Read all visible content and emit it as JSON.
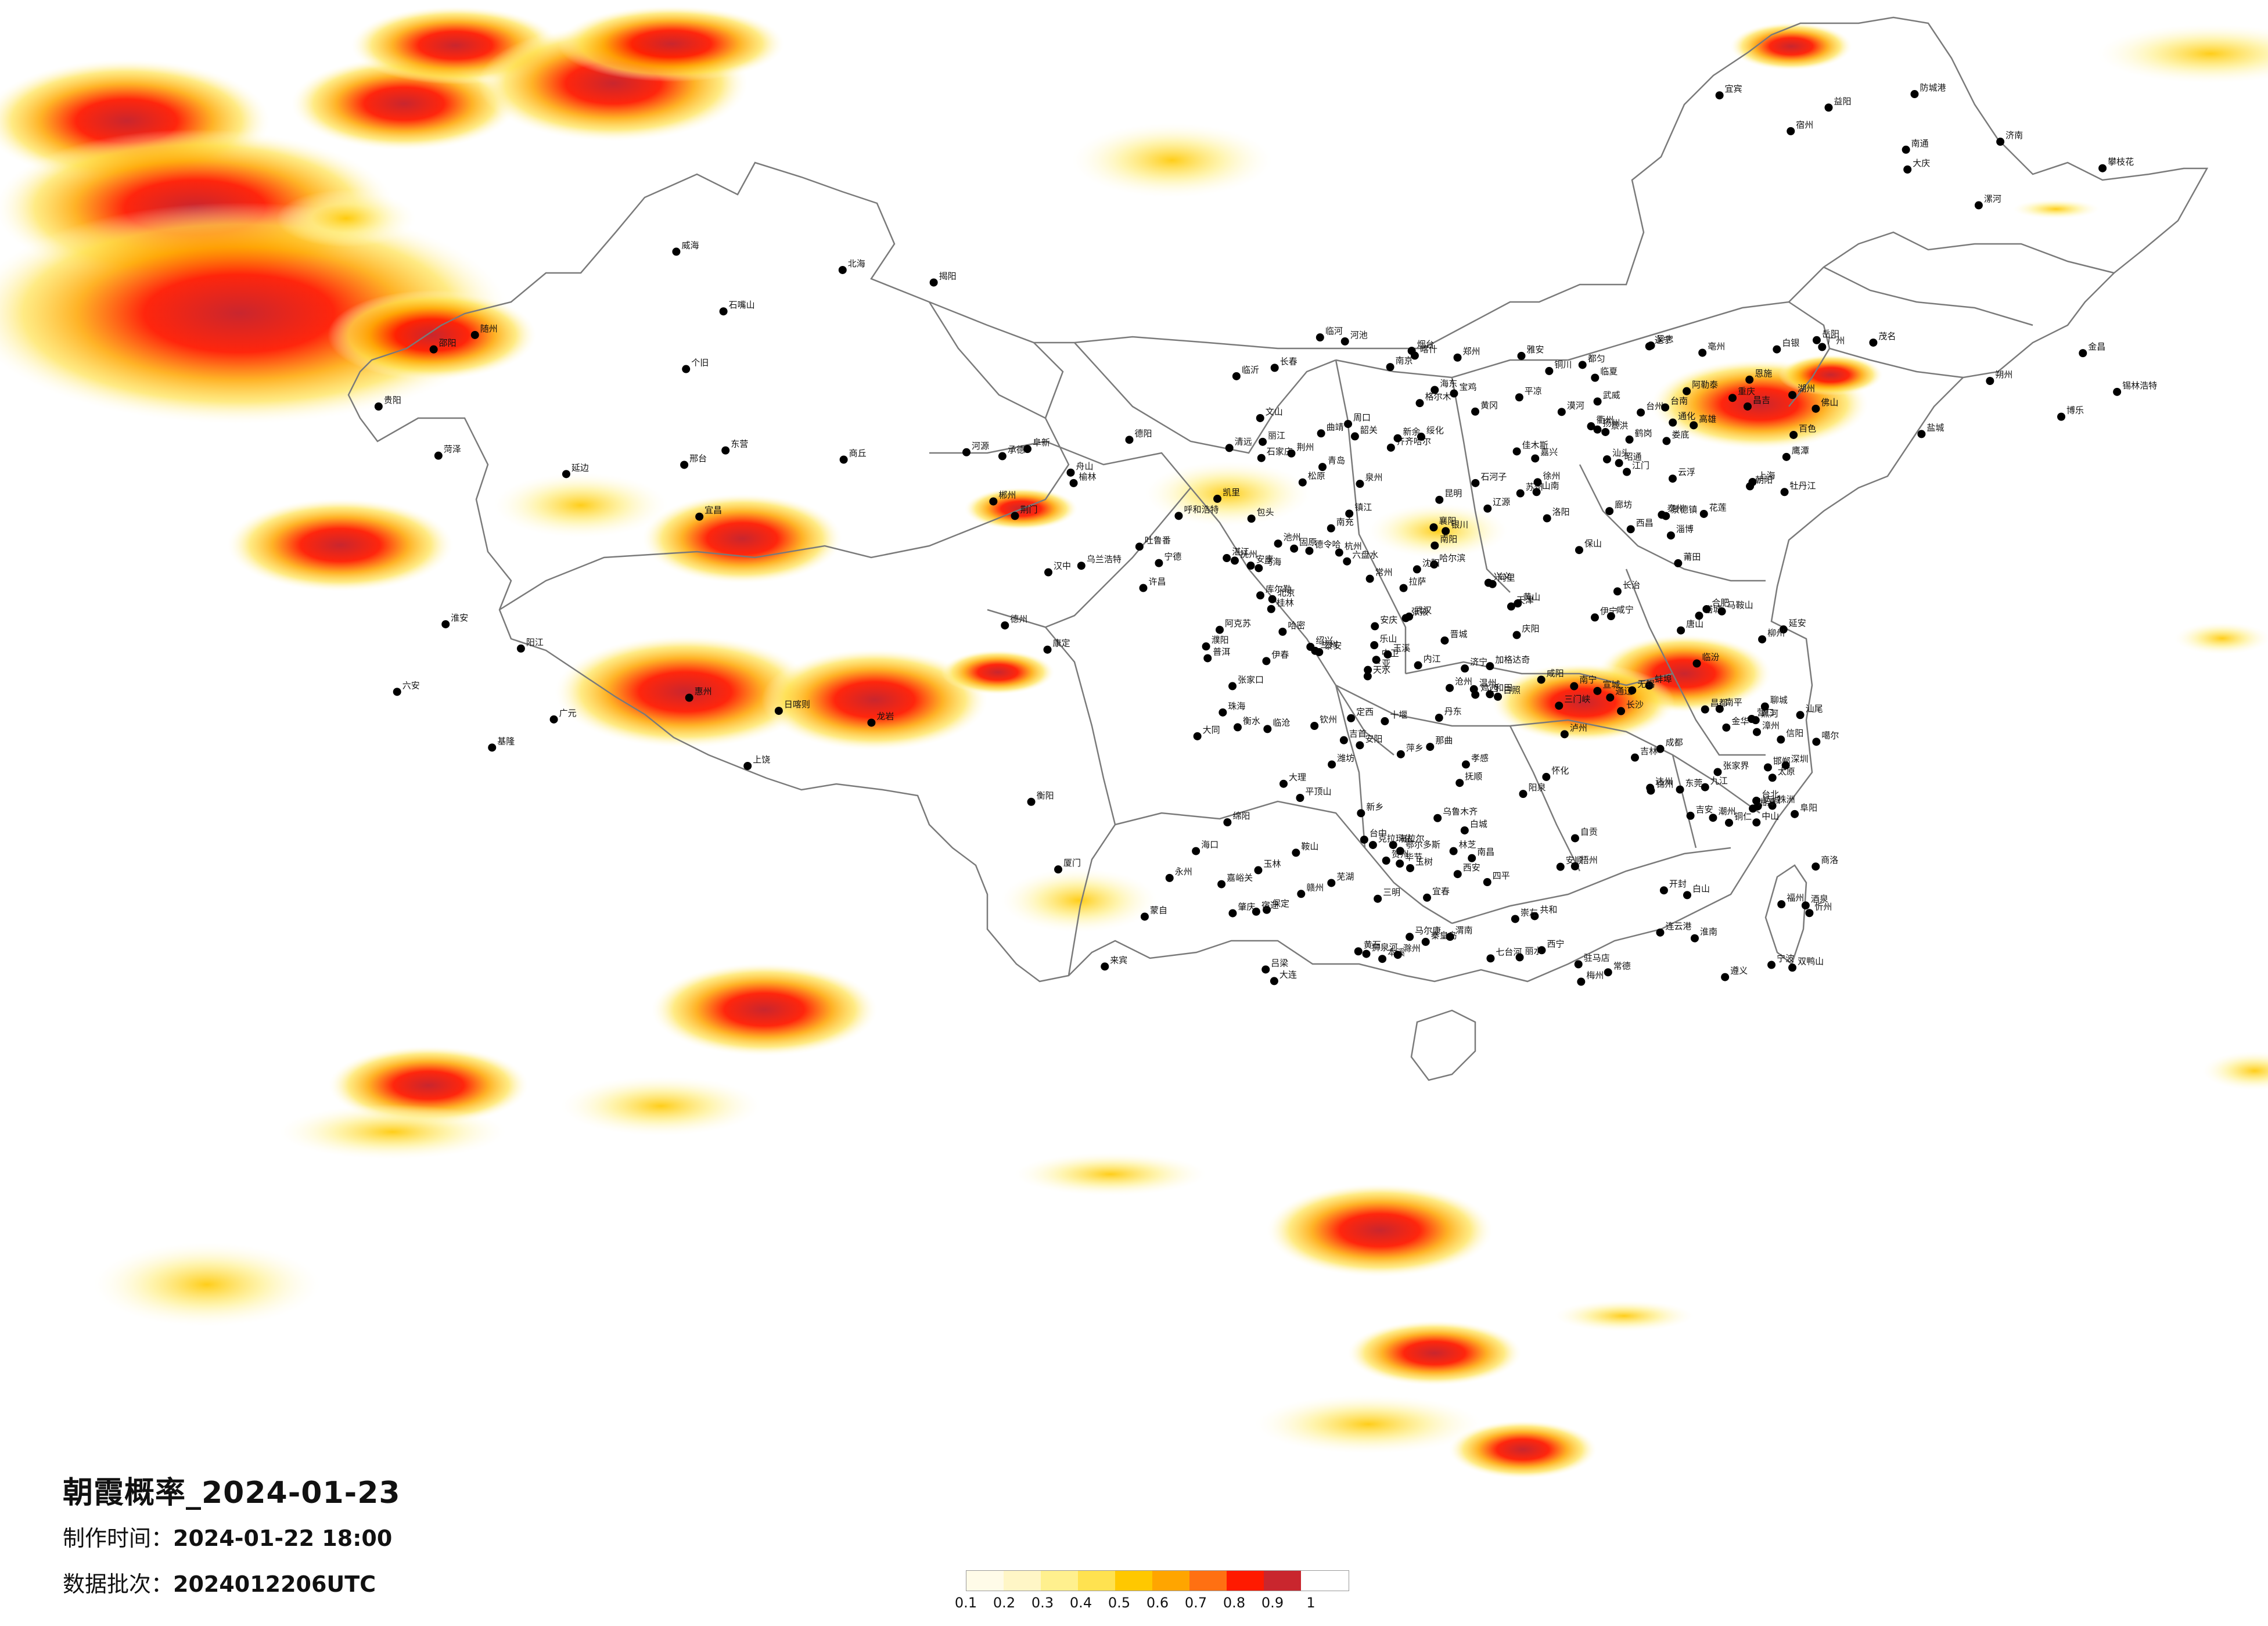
{
  "title": "朝霞概率_2024-01-23",
  "made_time_label": "制作时间：",
  "made_time_value": "2024-01-22 18:00",
  "batch_label": "数据批次：",
  "batch_value": "2024012206UTC",
  "legend": {
    "colors": [
      "#fffbe8",
      "#fff6c6",
      "#fff08e",
      "#ffe250",
      "#ffc800",
      "#ffa500",
      "#ff7012",
      "#ff1a00",
      "#c9262e"
    ],
    "labels": [
      "0.1",
      "0.2",
      "0.3",
      "0.4",
      "0.5",
      "0.6",
      "0.7",
      "0.8",
      "0.9",
      "1"
    ]
  },
  "cities": [
    "漠河",
    "加格达奇",
    "黑河",
    "海拉尔",
    "伊春",
    "鹤岗",
    "佳木斯",
    "双鸭山",
    "七台河",
    "鸡西",
    "齐齐哈尔",
    "大庆",
    "绥化",
    "哈尔滨",
    "牡丹江",
    "乌兰浩特",
    "白城",
    "松原",
    "长春",
    "吉林",
    "延边",
    "四平",
    "辽源",
    "通化",
    "白山",
    "锡林浩特",
    "通辽",
    "沈阳",
    "抚顺",
    "本溪",
    "丹东",
    "大连",
    "营口",
    "鞍山",
    "阜新",
    "锦州",
    "朝阳",
    "承德",
    "张家口",
    "呼和浩特",
    "包头",
    "乌海",
    "鄂尔多斯",
    "临河",
    "北京",
    "天津",
    "唐山",
    "秦皇岛",
    "廊坊",
    "保定",
    "石家庄",
    "衡水",
    "沧州",
    "邢台",
    "邯郸",
    "太原",
    "忻州",
    "阳泉",
    "大同",
    "朔州",
    "吕梁",
    "长治",
    "临汾",
    "运城",
    "晋城",
    "济南",
    "青岛",
    "烟台",
    "威海",
    "潍坊",
    "淄博",
    "东营",
    "德州",
    "聊城",
    "泰安",
    "济宁",
    "临沂",
    "日照",
    "菏泽",
    "郑州",
    "开封",
    "洛阳",
    "新乡",
    "安阳",
    "濮阳",
    "商丘",
    "周口",
    "驻马店",
    "南阳",
    "信阳",
    "许昌",
    "平顶山",
    "漯河",
    "三门峡",
    "西安",
    "咸阳",
    "宝鸡",
    "渭南",
    "延安",
    "榆林",
    "汉中",
    "安康",
    "商洛",
    "铜川",
    "兰州",
    "天水",
    "定西",
    "平凉",
    "庆阳",
    "武威",
    "张掖",
    "酒泉",
    "嘉峪关",
    "金昌",
    "白银",
    "临夏",
    "银川",
    "石嘴山",
    "吴忠",
    "固原",
    "中卫",
    "西宁",
    "海东",
    "德令哈",
    "格尔木",
    "玉树",
    "共和",
    "乌鲁木齐",
    "克拉玛依",
    "伊宁",
    "昌吉",
    "石河子",
    "吐鲁番",
    "哈密",
    "库尔勒",
    "阿克苏",
    "喀什",
    "和田",
    "塔城",
    "阿勒泰",
    "博乐",
    "拉萨",
    "日喀则",
    "林芝",
    "昌都",
    "那曲",
    "阿里",
    "山南",
    "噶尔",
    "狮泉河",
    "成都",
    "重庆",
    "绵阳",
    "德阳",
    "南充",
    "宜宾",
    "泸州",
    "乐山",
    "雅安",
    "达州",
    "广元",
    "遂宁",
    "内江",
    "自贡",
    "攀枝花",
    "西昌",
    "康定",
    "马尔康",
    "贵阳",
    "遵义",
    "六盘水",
    "安顺",
    "毕节",
    "铜仁",
    "都匀",
    "凯里",
    "兴义",
    "昆明",
    "曲靖",
    "玉溪",
    "大理",
    "丽江",
    "保山",
    "临沧",
    "普洱",
    "景洪",
    "个旧",
    "文山",
    "昭通",
    "蒙自",
    "长沙",
    "株洲",
    "湘潭",
    "岳阳",
    "常德",
    "益阳",
    "衡阳",
    "邵阳",
    "郴州",
    "永州",
    "怀化",
    "娄底",
    "张家界",
    "吉首",
    "武汉",
    "宜昌",
    "襄阳",
    "荆州",
    "十堰",
    "黄石",
    "孝感",
    "荆门",
    "恩施",
    "黄冈",
    "咸宁",
    "随州",
    "南昌",
    "九江",
    "景德镇",
    "上饶",
    "鹰潭",
    "抚州",
    "宜春",
    "新余",
    "萍乡",
    "吉安",
    "赣州",
    "合肥",
    "芜湖",
    "蚌埠",
    "淮南",
    "马鞍山",
    "安庆",
    "黄山",
    "阜阳",
    "六安",
    "宿州",
    "亳州",
    "滁州",
    "池州",
    "宣城",
    "南京",
    "苏州",
    "无锡",
    "常州",
    "扬州",
    "镇江",
    "南通",
    "泰州",
    "盐城",
    "淮安",
    "宿迁",
    "连云港",
    "徐州",
    "上海",
    "杭州",
    "宁波",
    "温州",
    "绍兴",
    "嘉兴",
    "湖州",
    "金华",
    "衢州",
    "台州",
    "丽水",
    "舟山",
    "福州",
    "厦门",
    "泉州",
    "漳州",
    "莆田",
    "三明",
    "南平",
    "龙岩",
    "宁德",
    "广州",
    "深圳",
    "珠海",
    "汕头",
    "佛山",
    "韶关",
    "湛江",
    "肇庆",
    "江门",
    "茂名",
    "惠州",
    "梅州",
    "汕尾",
    "河源",
    "阳江",
    "清远",
    "东莞",
    "中山",
    "潮州",
    "揭阳",
    "云浮",
    "南宁",
    "柳州",
    "桂林",
    "梧州",
    "北海",
    "钦州",
    "玉林",
    "百色",
    "河池",
    "贺州",
    "来宾",
    "崇左",
    "防城港",
    "海口",
    "三亚",
    "台北",
    "台中",
    "台南",
    "高雄",
    "花莲",
    "基隆"
  ]
}
